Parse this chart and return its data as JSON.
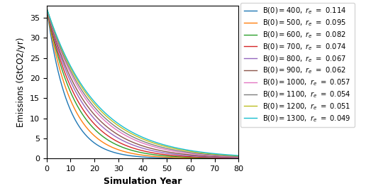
{
  "series": [
    {
      "B0": 400,
      "re": 0.114,
      "color": "#1f77b4"
    },
    {
      "B0": 500,
      "re": 0.095,
      "color": "#ff7f0e"
    },
    {
      "B0": 600,
      "re": 0.082,
      "color": "#2ca02c"
    },
    {
      "B0": 700,
      "re": 0.074,
      "color": "#d62728"
    },
    {
      "B0": 800,
      "re": 0.067,
      "color": "#9467bd"
    },
    {
      "B0": 900,
      "re": 0.062,
      "color": "#8c564b"
    },
    {
      "B0": 1000,
      "re": 0.057,
      "color": "#e377c2"
    },
    {
      "B0": 1100,
      "re": 0.054,
      "color": "#7f7f7f"
    },
    {
      "B0": 1200,
      "re": 0.051,
      "color": "#bcbd22"
    },
    {
      "B0": 1300,
      "re": 0.049,
      "color": "#17becf"
    }
  ],
  "E0": 37.5,
  "t_max": 80,
  "xlabel": "Simulation Year",
  "ylabel": "Emissions (GtCO2/yr)",
  "ylim": [
    0,
    38
  ],
  "xlim": [
    0,
    80
  ],
  "figsize": [
    5.47,
    2.69
  ],
  "dpi": 100,
  "yticks": [
    0,
    5,
    10,
    15,
    20,
    25,
    30,
    35
  ],
  "xticks": [
    0,
    10,
    20,
    30,
    40,
    50,
    60,
    70,
    80
  ]
}
